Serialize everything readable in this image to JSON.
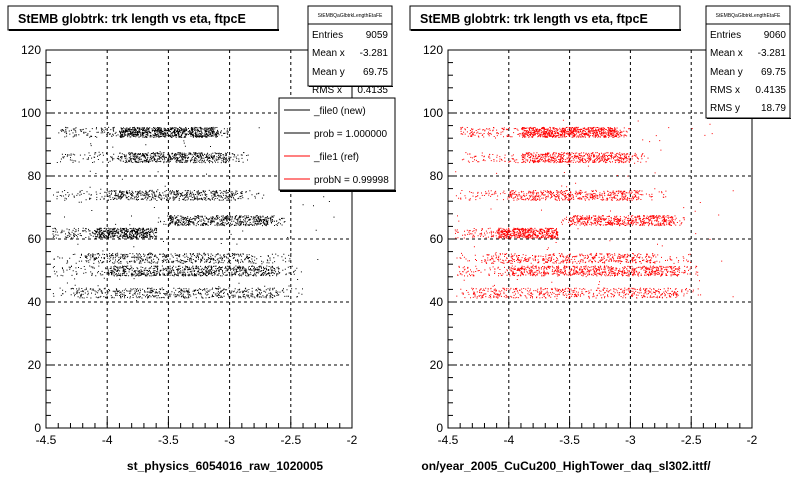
{
  "chart_data": [
    {
      "type": "scatter",
      "title": "StEMB globtrk: trk length vs eta, ftpcE",
      "xlabel": "st_physics_6054016_raw_1020005",
      "ylabel": "",
      "xlim": [
        -4.5,
        -2
      ],
      "ylim": [
        0,
        120
      ],
      "x_ticks": [
        "-4.5",
        "-4",
        "-3.5",
        "-3",
        "-2.5",
        "-2"
      ],
      "y_ticks": [
        "0",
        "20",
        "40",
        "60",
        "80",
        "100",
        "120"
      ],
      "grid": true,
      "marker_color": "#000000",
      "stats": {
        "title": "StEMBQaGlbtrkLengthEtaFE",
        "rows": [
          {
            "label": "Entries",
            "value": "9059"
          },
          {
            "label": "Mean x",
            "value": "-3.281"
          },
          {
            "label": "Mean y",
            "value": "69.75"
          },
          {
            "label": "RMS x",
            "value": "0.4135"
          }
        ]
      },
      "legend": {
        "placement": "top-right",
        "entries": [
          {
            "label": "_file0 (new)",
            "color": "#000000"
          },
          {
            "label": "prob = 1.000000",
            "color": "#000000"
          },
          {
            "label": "_file1 (ref)",
            "color": "#ff0000"
          },
          {
            "label": "probN = 0.99998",
            "color": "#ff0000"
          }
        ]
      },
      "bands": [
        {
          "y": 94,
          "x_start": -4.4,
          "x_end": -3.0,
          "dense_start": -3.9,
          "dense_end": -3.1,
          "density": 1.0
        },
        {
          "y": 86,
          "x_start": -4.4,
          "x_end": -2.85,
          "dense_start": -3.9,
          "dense_end": -3.0,
          "density": 0.7
        },
        {
          "y": 74,
          "x_start": -4.45,
          "x_end": -2.7,
          "dense_start": -4.0,
          "dense_end": -2.9,
          "density": 0.6
        },
        {
          "y": 66,
          "x_start": -3.6,
          "x_end": -2.55,
          "dense_start": -3.5,
          "dense_end": -2.65,
          "density": 0.6
        },
        {
          "y": 62,
          "x_start": -4.45,
          "x_end": -3.6,
          "dense_start": -4.1,
          "dense_end": -3.6,
          "density": 0.6
        },
        {
          "y": 54,
          "x_start": -4.45,
          "x_end": -2.5,
          "dense_start": -4.2,
          "dense_end": -2.8,
          "density": 0.55
        },
        {
          "y": 50,
          "x_start": -4.45,
          "x_end": -2.45,
          "dense_start": -4.0,
          "dense_end": -2.6,
          "density": 0.9
        },
        {
          "y": 43,
          "x_start": -4.45,
          "x_end": -2.4,
          "dense_start": -4.3,
          "dense_end": -2.6,
          "density": 0.6
        }
      ]
    },
    {
      "type": "scatter",
      "title": "StEMB globtrk: trk length vs eta, ftpcE",
      "xlabel": "on/year_2005_CuCu200_HighTower_daq_sl302.ittf/",
      "ylabel": "",
      "xlim": [
        -4.5,
        -2
      ],
      "ylim": [
        0,
        120
      ],
      "x_ticks": [
        "-4.5",
        "-4",
        "-3.5",
        "-3",
        "-2.5",
        "-2"
      ],
      "y_ticks": [
        "0",
        "20",
        "40",
        "60",
        "80",
        "100",
        "120"
      ],
      "grid": true,
      "marker_color": "#ff0000",
      "stats": {
        "title": "StEMBQaGlbtrkLengthEtaFE",
        "rows": [
          {
            "label": "Entries",
            "value": "9060"
          },
          {
            "label": "Mean x",
            "value": "-3.281"
          },
          {
            "label": "Mean y",
            "value": "69.75"
          },
          {
            "label": "RMS x",
            "value": "0.4135"
          },
          {
            "label": "RMS y",
            "value": "18.79"
          }
        ]
      },
      "bands": [
        {
          "y": 94,
          "x_start": -4.4,
          "x_end": -3.0,
          "dense_start": -3.9,
          "dense_end": -3.1,
          "density": 1.0
        },
        {
          "y": 86,
          "x_start": -4.4,
          "x_end": -2.85,
          "dense_start": -3.9,
          "dense_end": -3.0,
          "density": 0.7
        },
        {
          "y": 74,
          "x_start": -4.45,
          "x_end": -2.7,
          "dense_start": -4.0,
          "dense_end": -2.9,
          "density": 0.6
        },
        {
          "y": 66,
          "x_start": -3.6,
          "x_end": -2.55,
          "dense_start": -3.5,
          "dense_end": -2.65,
          "density": 0.6
        },
        {
          "y": 62,
          "x_start": -4.45,
          "x_end": -3.6,
          "dense_start": -4.1,
          "dense_end": -3.6,
          "density": 0.6
        },
        {
          "y": 54,
          "x_start": -4.45,
          "x_end": -2.5,
          "dense_start": -4.2,
          "dense_end": -2.8,
          "density": 0.55
        },
        {
          "y": 50,
          "x_start": -4.45,
          "x_end": -2.45,
          "dense_start": -4.0,
          "dense_end": -2.6,
          "density": 0.9
        },
        {
          "y": 43,
          "x_start": -4.45,
          "x_end": -2.4,
          "dense_start": -4.3,
          "dense_end": -2.6,
          "density": 0.6
        }
      ]
    }
  ]
}
